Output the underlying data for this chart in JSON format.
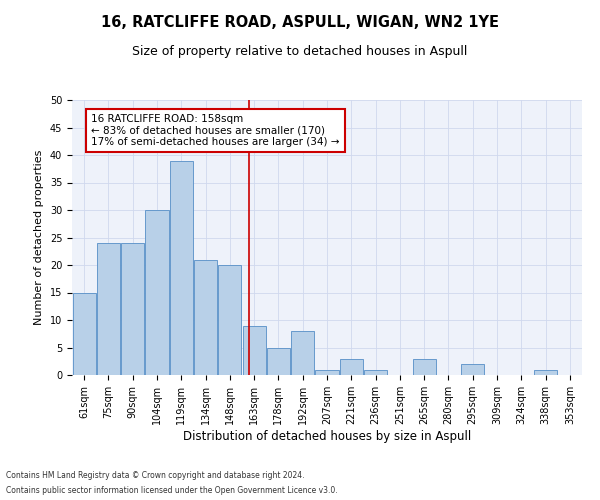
{
  "title": "16, RATCLIFFE ROAD, ASPULL, WIGAN, WN2 1YE",
  "subtitle": "Size of property relative to detached houses in Aspull",
  "xlabel": "Distribution of detached houses by size in Aspull",
  "ylabel": "Number of detached properties",
  "categories": [
    "61sqm",
    "75sqm",
    "90sqm",
    "104sqm",
    "119sqm",
    "134sqm",
    "148sqm",
    "163sqm",
    "178sqm",
    "192sqm",
    "207sqm",
    "221sqm",
    "236sqm",
    "251sqm",
    "265sqm",
    "280sqm",
    "295sqm",
    "309sqm",
    "324sqm",
    "338sqm",
    "353sqm"
  ],
  "values": [
    15,
    24,
    24,
    30,
    39,
    21,
    20,
    9,
    5,
    8,
    1,
    3,
    1,
    0,
    3,
    0,
    2,
    0,
    0,
    1,
    0
  ],
  "bar_color": "#b8d0e8",
  "bar_edge_color": "#6699cc",
  "property_label": "16 RATCLIFFE ROAD: 158sqm",
  "annotation_line1": "← 83% of detached houses are smaller (170)",
  "annotation_line2": "17% of semi-detached houses are larger (34) →",
  "annotation_box_color": "#ffffff",
  "annotation_box_edge_color": "#cc0000",
  "vline_color": "#cc0000",
  "footer_line1": "Contains HM Land Registry data © Crown copyright and database right 2024.",
  "footer_line2": "Contains public sector information licensed under the Open Government Licence v3.0.",
  "ylim": [
    0,
    50
  ],
  "yticks": [
    0,
    5,
    10,
    15,
    20,
    25,
    30,
    35,
    40,
    45,
    50
  ],
  "grid_color": "#d0d8ee",
  "bg_color": "#eef2fa",
  "title_fontsize": 10.5,
  "subtitle_fontsize": 9,
  "xlabel_fontsize": 8.5,
  "ylabel_fontsize": 8,
  "tick_fontsize": 7,
  "annotation_fontsize": 7.5,
  "footer_fontsize": 5.5
}
